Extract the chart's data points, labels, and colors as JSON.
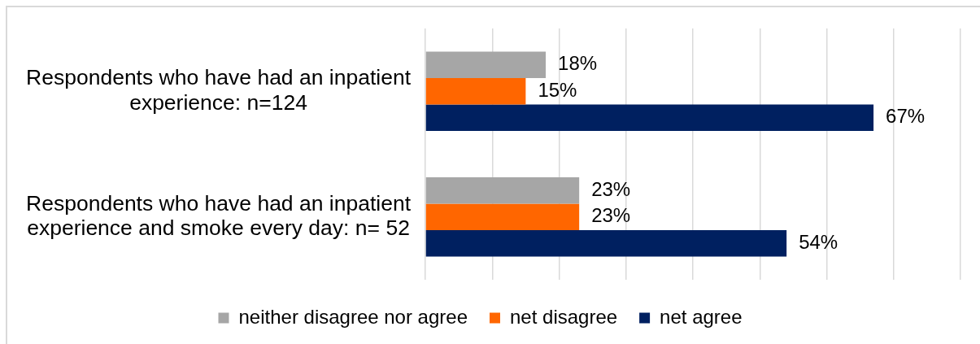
{
  "chart_data": {
    "type": "bar",
    "orientation": "horizontal",
    "categories": [
      "Respondents who have had an inpatient experience: n=124",
      "Respondents who have had an inpatient experience and smoke every day: n= 52"
    ],
    "series": [
      {
        "name": "neither disagree nor agree",
        "color": "#a6a6a6",
        "values": [
          18,
          23
        ],
        "value_labels": [
          "18%",
          "23%"
        ]
      },
      {
        "name": "net disagree",
        "color": "#ff6600",
        "values": [
          15,
          23
        ],
        "value_labels": [
          "15%",
          "23%"
        ]
      },
      {
        "name": "net agree",
        "color": "#002060",
        "values": [
          67,
          54
        ],
        "value_labels": [
          "67%",
          "54%"
        ]
      }
    ],
    "xlim": [
      0,
      80
    ],
    "xticks": [
      0,
      10,
      20,
      30,
      40,
      50,
      60,
      70,
      80
    ],
    "grid": "x",
    "tick_labels": "y",
    "legend": "bottom"
  }
}
